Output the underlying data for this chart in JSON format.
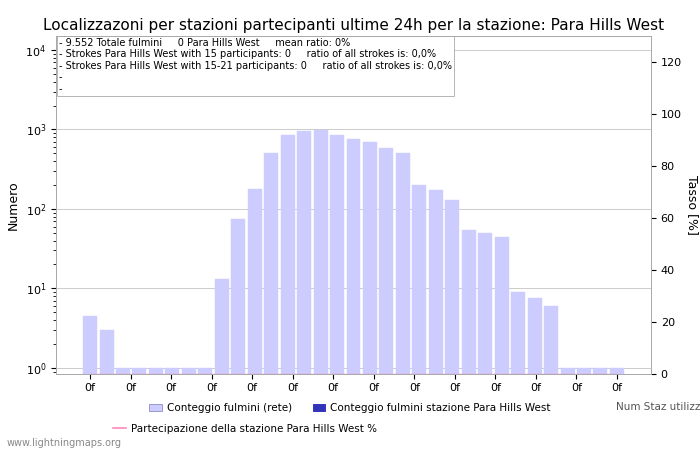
{
  "title": "Localizzazoni per stazioni partecipanti ultime 24h per la stazione: Para Hills West",
  "ylabel_left": "Numero",
  "ylabel_right": "Tasso [%]",
  "annotation_lines": [
    "9.552 Totale fulmini     0 Para Hills West     mean ratio: 0%",
    "Strokes Para Hills West with 15 participants: 0     ratio of all strokes is: 0,0%",
    "Strokes Para Hills West with 15-21 participants: 0     ratio of all strokes is: 0,0%"
  ],
  "bar_values": [
    4.5,
    3.0,
    1.0,
    1.0,
    1.0,
    1.0,
    1.0,
    1.0,
    13.0,
    75.0,
    180.0,
    500.0,
    850.0,
    950.0,
    980.0,
    850.0,
    750.0,
    700.0,
    580.0,
    500.0,
    200.0,
    175.0,
    130.0,
    55.0,
    50.0,
    44.0,
    9.0,
    7.5,
    6.0,
    1.0,
    1.0,
    1.0,
    1.0
  ],
  "n_bars": 33,
  "bar_color_light": "#ccccff",
  "bar_color_dark": "#3333bb",
  "bar_edge_color": "#9999cc",
  "xlabel_labels": [
    "0f",
    "0f",
    "0f",
    "0f",
    "0f",
    "0f",
    "0f",
    "0f",
    "0f",
    "0f",
    "0f",
    "0f",
    "0f",
    "0f"
  ],
  "ylim_right": [
    0,
    130
  ],
  "right_yticks": [
    0,
    20,
    40,
    60,
    80,
    100,
    120
  ],
  "grid_color": "#cccccc",
  "title_fontsize": 11,
  "annotation_fontsize": 7,
  "axis_fontsize": 8,
  "watermark": "www.lightningmaps.org",
  "pink_line_color": "#ff88bb",
  "legend_label_light": "Conteggio fulmini (rete)",
  "legend_label_dark": "Conteggio fulmini stazione Para Hills West",
  "legend_label_num": "Num Staz utilizzate",
  "legend_label_pink": "Partecipazione della stazione Para Hills West %"
}
